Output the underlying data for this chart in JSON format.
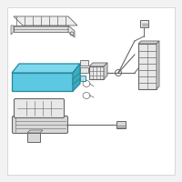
{
  "bg_color": "#f2f2f2",
  "white_bg": "#ffffff",
  "highlight_color": "#5cc8e2",
  "highlight_top": "#7dd8ee",
  "highlight_side": "#3aabbf",
  "highlight_edge": "#2a8899",
  "line_color": "#999999",
  "dark_line": "#666666",
  "part_fill": "#e8e8e8",
  "part_fill2": "#d8d8d8",
  "fig_size": [
    2.0,
    2.0
  ],
  "dpi": 100
}
